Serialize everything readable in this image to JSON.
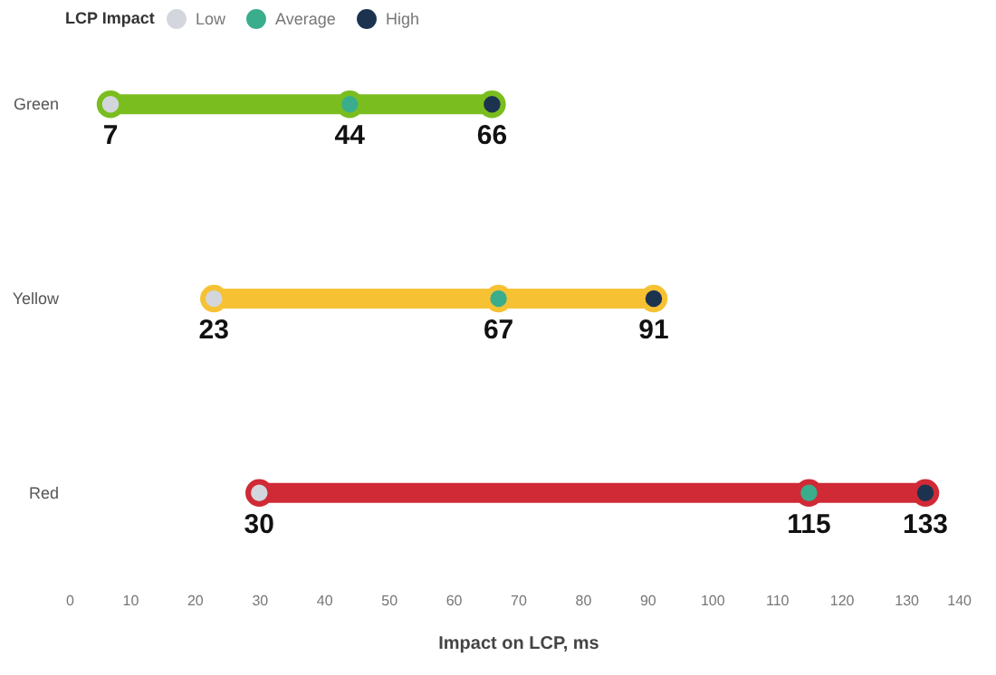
{
  "chart_data": {
    "type": "bar",
    "orientation": "horizontal",
    "legend_title": "LCP Impact",
    "xlabel": "Impact on LCP, ms",
    "categories": [
      "Green",
      "Yellow",
      "Red"
    ],
    "xlim": [
      0,
      140
    ],
    "xticks": [
      0,
      10,
      20,
      30,
      40,
      50,
      60,
      70,
      80,
      90,
      100,
      110,
      120,
      130,
      140
    ],
    "legend": "top left",
    "grid": false,
    "marker": "circle",
    "series": [
      {
        "base": [
          7,
          23,
          30
        ],
        "values": [
          59,
          68,
          103
        ],
        "colors": [
          "#7abd1f",
          "#f6c234",
          "#cf2a36"
        ]
      },
      {
        "type": "scatter",
        "name": "Low",
        "color": "#d3d6dc",
        "x": [
          "Green",
          "Yellow",
          "Red"
        ],
        "values": [
          7,
          23,
          30
        ],
        "value_labels": [
          "7",
          "23",
          "30"
        ]
      },
      {
        "type": "scatter",
        "name": "Average",
        "color": "#3aae8c",
        "x": [
          "Green",
          "Yellow",
          "Red"
        ],
        "values": [
          44,
          67,
          115
        ],
        "value_labels": [
          "44",
          "67",
          "115"
        ]
      },
      {
        "type": "scatter",
        "name": "High",
        "color": "#1c3350",
        "x": [
          "Green",
          "Yellow",
          "Red"
        ],
        "values": [
          66,
          91,
          133
        ],
        "value_labels": [
          "66",
          "91",
          "133"
        ]
      }
    ]
  }
}
